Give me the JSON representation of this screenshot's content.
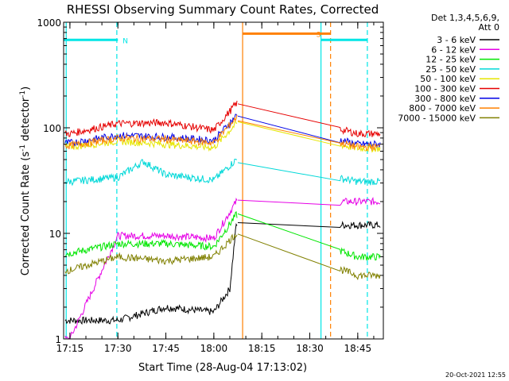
{
  "chart_data": {
    "type": "line",
    "title": "RHESSI Observing Summary Count Rates, Corrected",
    "xlabel": "Start Time (28-Aug-04 17:13:02)",
    "ylabel_main": "Corrected Count Rate (s",
    "ylabel_sup1": "-1",
    "ylabel_mid": " detector",
    "ylabel_sup2": "-1",
    "ylabel_end": ")",
    "y_scale": "log",
    "ylim": [
      1,
      1000
    ],
    "xlim": [
      "17:13:02",
      "18:53:00"
    ],
    "x_ticks": [
      "17:15",
      "17:30",
      "17:45",
      "18:00",
      "18:15",
      "18:30",
      "18:45"
    ],
    "y_ticks": [
      "1",
      "10",
      "100",
      "1000"
    ],
    "legend_header": [
      "Det 1,3,4,5,6,9,",
      "Att 0"
    ],
    "legend_position": "right",
    "gaps": [
      {
        "start": "18:07:30",
        "end": "18:39:30"
      }
    ],
    "series": [
      {
        "name": "3 - 6 keV",
        "color": "#000000",
        "values": [
          {
            "t": "17:30",
            "v": 1.5
          },
          {
            "t": "17:45",
            "v": 2.0
          },
          {
            "t": "18:00",
            "v": 1.8
          },
          {
            "t": "18:05",
            "v": 3.0
          },
          {
            "t": "18:07",
            "v": 12
          }
        ]
      },
      {
        "name": "6 - 12 keV",
        "color": "#e600e6",
        "values": [
          {
            "t": "17:15",
            "v": 1.0
          },
          {
            "t": "17:30",
            "v": 9.5
          },
          {
            "t": "17:45",
            "v": 9.5
          },
          {
            "t": "18:00",
            "v": 9.0
          },
          {
            "t": "18:07",
            "v": 20
          }
        ]
      },
      {
        "name": "12 - 25 keV",
        "color": "#00e600",
        "values": [
          {
            "t": "17:15",
            "v": 6.5
          },
          {
            "t": "17:30",
            "v": 8.0
          },
          {
            "t": "17:45",
            "v": 8.0
          },
          {
            "t": "18:00",
            "v": 7.5
          },
          {
            "t": "18:07",
            "v": 15
          },
          {
            "t": "18:45",
            "v": 6.0
          }
        ]
      },
      {
        "name": "25 - 50 keV",
        "color": "#00d8d8",
        "values": [
          {
            "t": "17:15",
            "v": 31
          },
          {
            "t": "17:30",
            "v": 34
          },
          {
            "t": "17:38",
            "v": 48
          },
          {
            "t": "17:45",
            "v": 36
          },
          {
            "t": "18:00",
            "v": 32
          },
          {
            "t": "18:07",
            "v": 50
          },
          {
            "t": "18:45",
            "v": 31
          }
        ]
      },
      {
        "name": "50 - 100 keV",
        "color": "#e6e600",
        "values": [
          {
            "t": "17:15",
            "v": 66
          },
          {
            "t": "17:30",
            "v": 75
          },
          {
            "t": "17:45",
            "v": 70
          },
          {
            "t": "18:00",
            "v": 65
          },
          {
            "t": "18:07",
            "v": 110
          },
          {
            "t": "18:45",
            "v": 64
          }
        ]
      },
      {
        "name": "100 - 300 keV",
        "color": "#e60000",
        "values": [
          {
            "t": "17:15",
            "v": 88
          },
          {
            "t": "17:30",
            "v": 110
          },
          {
            "t": "17:45",
            "v": 112
          },
          {
            "t": "18:00",
            "v": 95
          },
          {
            "t": "18:07",
            "v": 170
          },
          {
            "t": "18:45",
            "v": 88
          }
        ]
      },
      {
        "name": "300 - 800 keV",
        "color": "#0000e6",
        "values": [
          {
            "t": "17:15",
            "v": 72
          },
          {
            "t": "17:30",
            "v": 85
          },
          {
            "t": "17:45",
            "v": 82
          },
          {
            "t": "18:00",
            "v": 76
          },
          {
            "t": "18:07",
            "v": 130
          },
          {
            "t": "18:45",
            "v": 70
          }
        ]
      },
      {
        "name": "800 - 7000 keV",
        "color": "#ff8000",
        "values": [
          {
            "t": "17:15",
            "v": 68
          },
          {
            "t": "17:30",
            "v": 80
          },
          {
            "t": "17:45",
            "v": 78
          },
          {
            "t": "18:00",
            "v": 72
          },
          {
            "t": "18:07",
            "v": 125
          },
          {
            "t": "18:45",
            "v": 66
          }
        ]
      },
      {
        "name": "7000 - 15000 keV",
        "color": "#808000",
        "values": [
          {
            "t": "17:15",
            "v": 4.5
          },
          {
            "t": "17:30",
            "v": 6.0
          },
          {
            "t": "17:45",
            "v": 5.5
          },
          {
            "t": "18:00",
            "v": 6.0
          },
          {
            "t": "18:07",
            "v": 10
          },
          {
            "t": "18:45",
            "v": 4.0
          }
        ]
      }
    ],
    "flags": [
      {
        "label": "N",
        "color": "#00e6e6",
        "level": 680,
        "segments": [
          [
            "17:13:02",
            "17:30:00"
          ],
          [
            "18:33:30",
            "18:48:00"
          ]
        ]
      },
      {
        "label": "S",
        "color": "#ff8000",
        "level": 780,
        "segments": [
          [
            "18:09:00",
            "18:36:30"
          ]
        ]
      }
    ],
    "markers": [
      {
        "time": "17:13:50",
        "color": "#00e6e6",
        "style": "solid"
      },
      {
        "time": "17:29:40",
        "color": "#00e6e6",
        "style": "dashed"
      },
      {
        "time": "18:09:00",
        "color": "#ff8000",
        "style": "solid"
      },
      {
        "time": "18:33:30",
        "color": "#00e6e6",
        "style": "solid"
      },
      {
        "time": "18:36:30",
        "color": "#ff8000",
        "style": "dashed"
      },
      {
        "time": "18:48:00",
        "color": "#00e6e6",
        "style": "dashed"
      }
    ],
    "footer": "20-Oct-2021 12:55"
  }
}
